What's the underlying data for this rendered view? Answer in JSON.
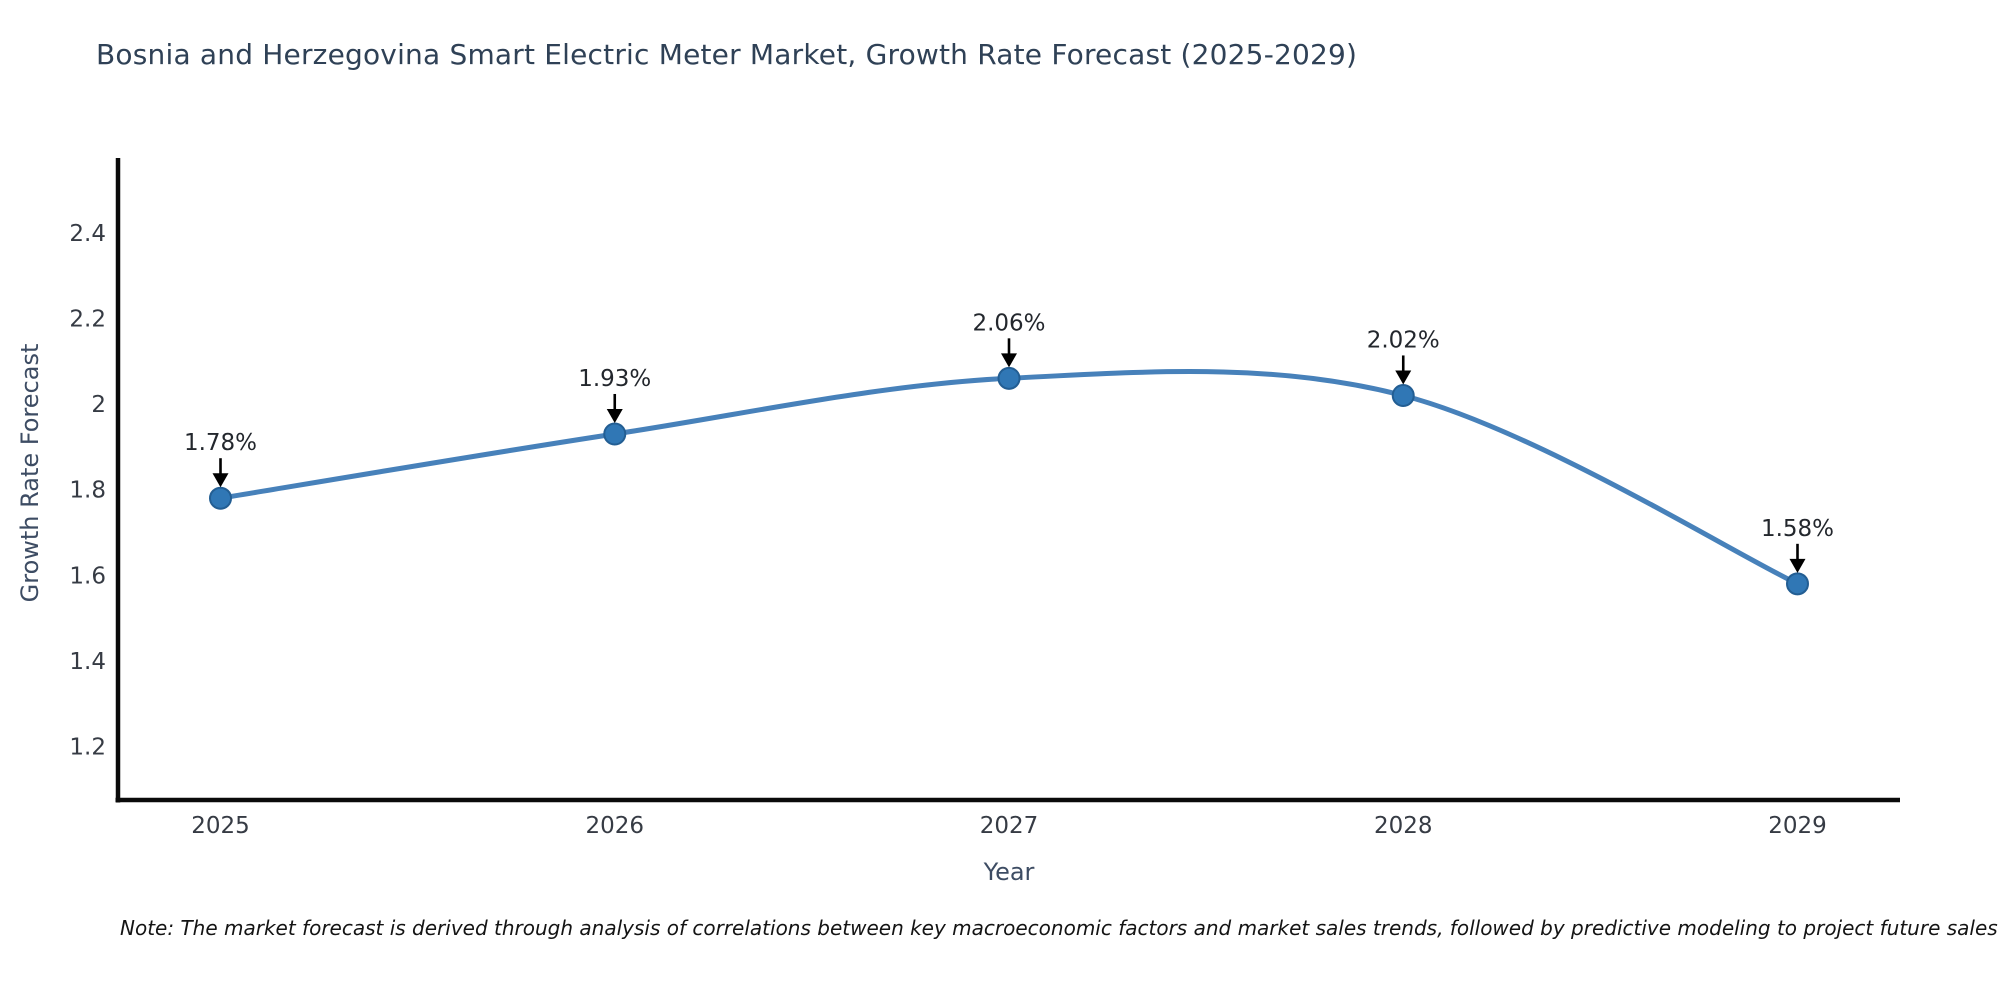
{
  "title": "Bosnia and Herzegovina Smart Electric Meter Market, Growth Rate Forecast (2025-2029)",
  "note": "Note: The market forecast is derived through analysis of correlations between key macroeconomic factors and market sales trends, followed by predictive modeling to project future sales",
  "chart_data": {
    "type": "line",
    "title": "Bosnia and Herzegovina Smart Electric Meter Market, Growth Rate Forecast (2025-2029)",
    "x": [
      2025,
      2026,
      2027,
      2028,
      2029
    ],
    "values": [
      1.78,
      1.93,
      2.06,
      2.02,
      1.58
    ],
    "point_labels": [
      "1.78%",
      "1.93%",
      "2.06%",
      "2.02%",
      "1.58%"
    ],
    "xlabel": "Year",
    "ylabel": "Growth Rate Forecast",
    "xtick_labels": [
      "2025",
      "2026",
      "2027",
      "2028",
      "2029"
    ],
    "ytick_values": [
      2.4,
      2.2,
      2.0,
      1.8,
      1.6,
      1.4,
      1.2
    ],
    "ytick_labels": [
      "2.4",
      "2.2",
      "2",
      "1.8",
      "1.6",
      "1.4",
      "1.2"
    ],
    "xlim": [
      2024.74,
      2029.26
    ],
    "ylim": [
      1.075,
      2.57
    ],
    "grid": false,
    "legend": null,
    "smooth": true,
    "colors": {
      "line": "#4781ba",
      "marker_fill": "#3077b5",
      "marker_edge": "#235e93",
      "annotation_text": "#23272d",
      "arrow": "#000000",
      "spine": "#0a0a0a",
      "tick_label": "#363b44",
      "title": "#2f4156",
      "axis_label": "#3d4c63"
    }
  }
}
